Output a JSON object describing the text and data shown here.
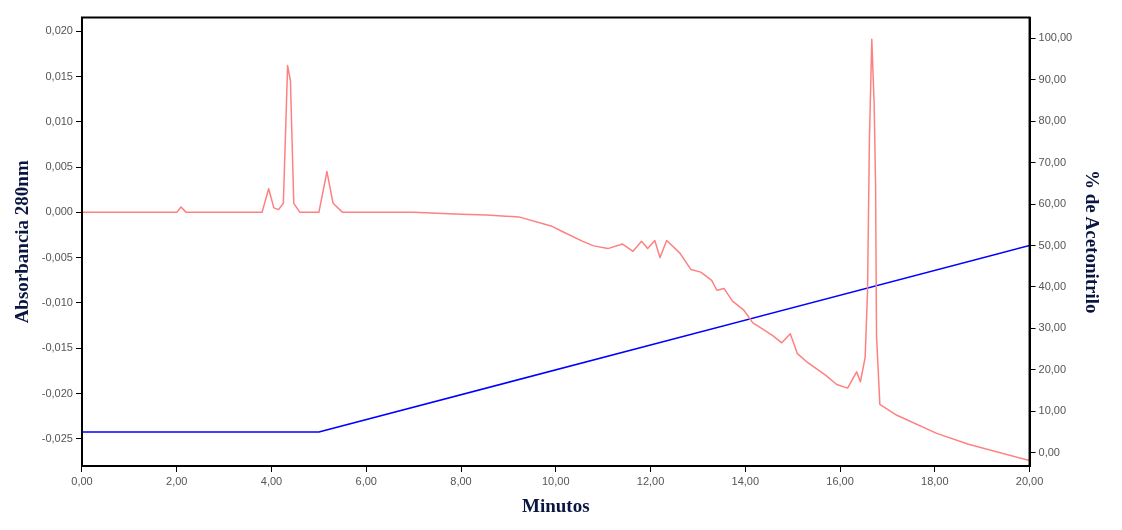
{
  "chart_data": {
    "type": "line",
    "xlabel": "Minutos",
    "ylabel": "Absorbancia 280nm",
    "y2label": "% de Acetonitrilo",
    "xlim": [
      0,
      20
    ],
    "ylim": [
      -0.028,
      0.0215
    ],
    "y2lim": [
      -3.2,
      105
    ],
    "xticks": [
      {
        "value": 0,
        "label": "0,00"
      },
      {
        "value": 2,
        "label": "2,00"
      },
      {
        "value": 4,
        "label": "4,00"
      },
      {
        "value": 6,
        "label": "6,00"
      },
      {
        "value": 8,
        "label": "8,00"
      },
      {
        "value": 10,
        "label": "10,00"
      },
      {
        "value": 12,
        "label": "12,00"
      },
      {
        "value": 14,
        "label": "14,00"
      },
      {
        "value": 16,
        "label": "16,00"
      },
      {
        "value": 18,
        "label": "18,00"
      },
      {
        "value": 20,
        "label": "20,00"
      }
    ],
    "yticks": [
      {
        "value": -0.025,
        "label": "-0,025"
      },
      {
        "value": -0.02,
        "label": "-0,020"
      },
      {
        "value": -0.015,
        "label": "-0,015"
      },
      {
        "value": -0.01,
        "label": "-0,010"
      },
      {
        "value": -0.005,
        "label": "-0,005"
      },
      {
        "value": 0,
        "label": "0,000"
      },
      {
        "value": 0.005,
        "label": "0,005"
      },
      {
        "value": 0.01,
        "label": "0,010"
      },
      {
        "value": 0.015,
        "label": "0,015"
      },
      {
        "value": 0.02,
        "label": "0,020"
      }
    ],
    "y2ticks": [
      {
        "value": 0,
        "label": "0,00"
      },
      {
        "value": 10,
        "label": "10,00"
      },
      {
        "value": 20,
        "label": "20,00"
      },
      {
        "value": 30,
        "label": "30,00"
      },
      {
        "value": 40,
        "label": "40,00"
      },
      {
        "value": 50,
        "label": "50,00"
      },
      {
        "value": 60,
        "label": "60,00"
      },
      {
        "value": 70,
        "label": "70,00"
      },
      {
        "value": 80,
        "label": "80,00"
      },
      {
        "value": 90,
        "label": "90,00"
      },
      {
        "value": 100,
        "label": "100,00"
      }
    ],
    "grid": false,
    "legend": false,
    "marker": "none",
    "line_style": "solid",
    "series": [
      {
        "color": "#ff8080",
        "x": [
          0,
          1,
          2,
          2.09,
          2.2,
          3,
          3.8,
          3.94,
          4.05,
          4.15,
          4.25,
          4.34,
          4.4,
          4.47,
          4.6,
          5.0,
          5.17,
          5.3,
          5.5,
          6,
          7,
          8,
          8.54,
          9.22,
          9.9,
          10.17,
          10.57,
          10.8,
          11.1,
          11.41,
          11.63,
          11.81,
          11.94,
          12.09,
          12.2,
          12.34,
          12.62,
          12.85,
          13.06,
          13.29,
          13.4,
          13.55,
          13.73,
          13.97,
          14.16,
          14.58,
          14.77,
          14.95,
          15.1,
          15.32,
          15.7,
          15.93,
          16.16,
          16.35,
          16.43,
          16.53,
          16.58,
          16.62,
          16.67,
          16.72,
          16.75,
          16.77,
          16.84,
          17.2,
          18.04,
          18.71,
          20
        ],
        "values": [
          0,
          0,
          0,
          0.0006,
          0,
          0,
          0,
          0.0026,
          0.0005,
          0.0003,
          0.001,
          0.0162,
          0.0145,
          0.001,
          0,
          0,
          0.0045,
          0.001,
          0,
          0,
          0,
          -0.0002,
          -0.0003,
          -0.0005,
          -0.0015,
          -0.0022,
          -0.0032,
          -0.0037,
          -0.004,
          -0.0035,
          -0.0043,
          -0.0032,
          -0.004,
          -0.0031,
          -0.005,
          -0.0031,
          -0.0045,
          -0.0063,
          -0.0066,
          -0.0075,
          -0.0086,
          -0.0084,
          -0.0098,
          -0.0108,
          -0.0122,
          -0.0136,
          -0.0144,
          -0.0134,
          -0.0156,
          -0.0166,
          -0.018,
          -0.019,
          -0.0194,
          -0.0176,
          -0.0187,
          -0.016,
          -0.0088,
          0.008,
          0.0191,
          0.012,
          0.0031,
          -0.0136,
          -0.0212,
          -0.0224,
          -0.0244,
          -0.0256,
          -0.0274
        ]
      },
      {
        "color": "#0000ff",
        "axis": "y2",
        "x": [
          0,
          5,
          20
        ],
        "values": [
          5,
          5,
          50
        ]
      }
    ]
  }
}
